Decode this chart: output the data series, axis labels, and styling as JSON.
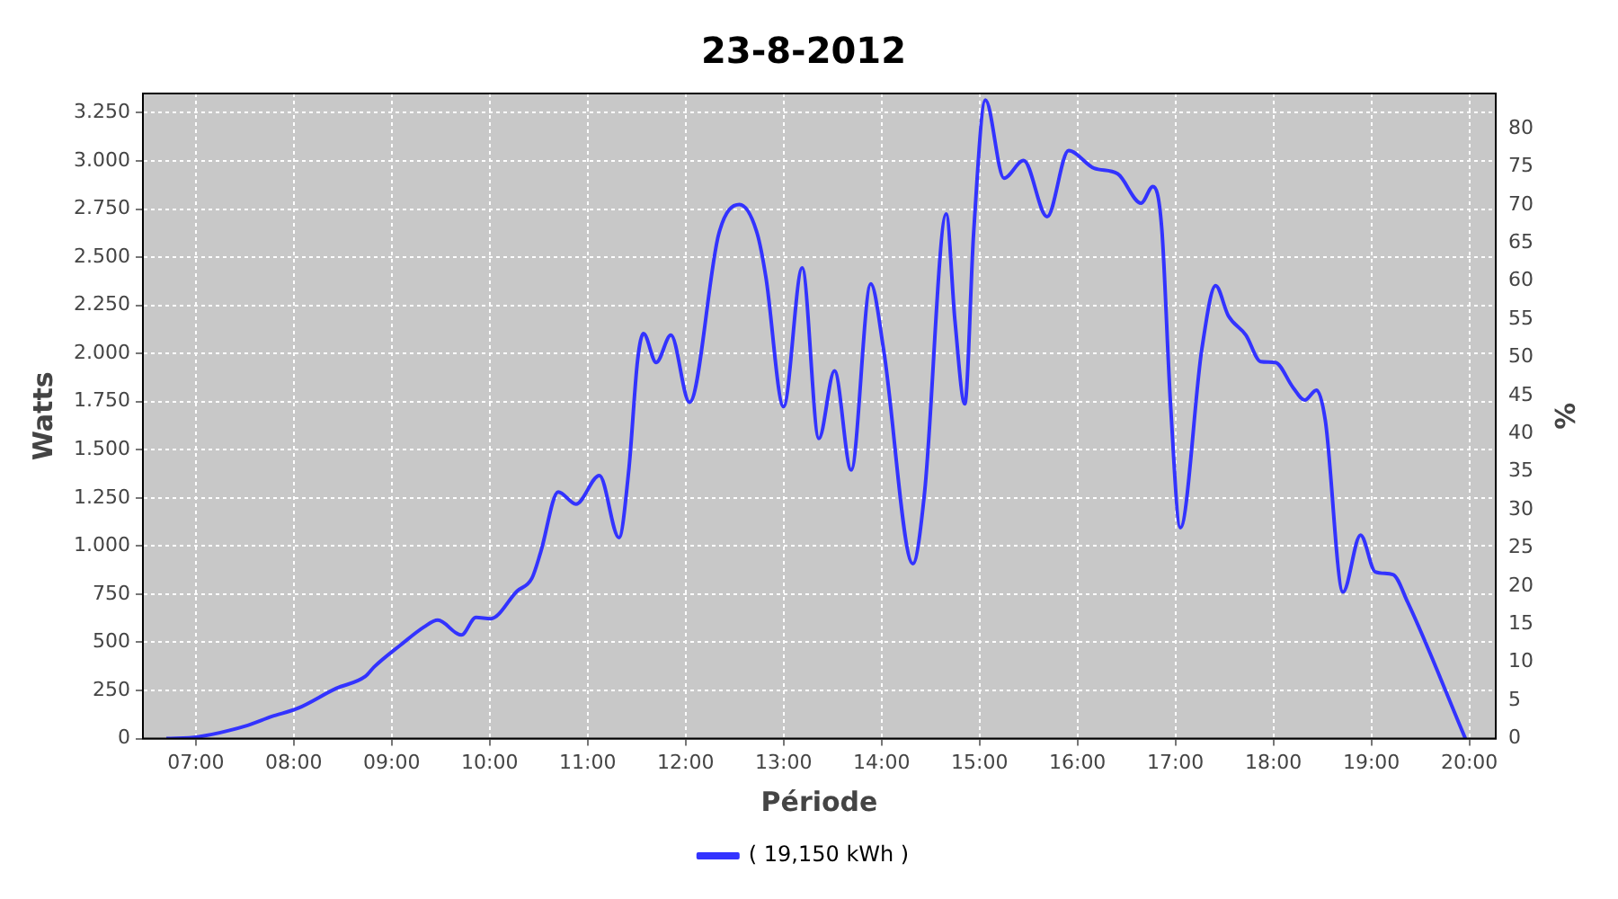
{
  "chart_data": {
    "type": "line",
    "title": "23-8-2012",
    "xlabel": "Période",
    "ylabel": "Watts",
    "y2label": "%",
    "x": [
      6.7,
      7.02,
      7.53,
      7.77,
      8.04,
      8.43,
      8.73,
      8.82,
      9.09,
      9.33,
      9.47,
      9.71,
      9.86,
      10.01,
      10.28,
      10.43,
      10.52,
      10.7,
      10.88,
      11.12,
      11.32,
      11.42,
      11.51,
      11.57,
      11.7,
      11.85,
      12.04,
      12.34,
      12.55,
      12.73,
      12.82,
      13.0,
      13.19,
      13.36,
      13.52,
      13.69,
      13.89,
      14.02,
      14.32,
      14.44,
      14.66,
      14.75,
      14.85,
      14.94,
      15.06,
      15.25,
      15.45,
      15.69,
      15.91,
      16.17,
      16.41,
      16.65,
      16.77,
      16.86,
      16.95,
      17.05,
      17.27,
      17.41,
      17.54,
      17.72,
      17.87,
      18.02,
      18.2,
      18.32,
      18.44,
      18.53,
      18.71,
      18.89,
      19.04,
      19.22,
      19.37,
      19.96
    ],
    "series": [
      {
        "name": "( 19,150 kWh )",
        "color": "#3333ff",
        "values": [
          0,
          9,
          69,
          114,
          157,
          260,
          323,
          372,
          486,
          580,
          615,
          538,
          629,
          623,
          766,
          832,
          967,
          1281,
          1218,
          1366,
          1044,
          1395,
          1966,
          2104,
          1953,
          2095,
          1747,
          2624,
          2773,
          2624,
          2395,
          1724,
          2444,
          1558,
          1910,
          1395,
          2361,
          2024,
          909,
          1281,
          2725,
          2167,
          1738,
          2624,
          3316,
          2910,
          3002,
          2710,
          3053,
          2962,
          2933,
          2781,
          2867,
          2653,
          1738,
          1095,
          2024,
          2352,
          2196,
          2095,
          1958,
          1953,
          1824,
          1758,
          1810,
          1653,
          761,
          1057,
          866,
          852,
          709,
          0
        ]
      }
    ],
    "xlim": [
      6.46,
      20.27
    ],
    "xticks": [
      {
        "value": 7,
        "label": "07:00"
      },
      {
        "value": 8,
        "label": "08:00"
      },
      {
        "value": 9,
        "label": "09:00"
      },
      {
        "value": 10,
        "label": "10:00"
      },
      {
        "value": 11,
        "label": "11:00"
      },
      {
        "value": 12,
        "label": "12:00"
      },
      {
        "value": 13,
        "label": "13:00"
      },
      {
        "value": 14,
        "label": "14:00"
      },
      {
        "value": 15,
        "label": "15:00"
      },
      {
        "value": 16,
        "label": "16:00"
      },
      {
        "value": 17,
        "label": "17:00"
      },
      {
        "value": 18,
        "label": "18:00"
      },
      {
        "value": 19,
        "label": "19:00"
      },
      {
        "value": 20,
        "label": "20:00"
      }
    ],
    "ylim": [
      0,
      3350
    ],
    "yticks": [
      0,
      250,
      500,
      750,
      {
        "value": 1000,
        "label": "1.000"
      },
      {
        "value": 1250,
        "label": "1.250"
      },
      {
        "value": 1500,
        "label": "1.500"
      },
      {
        "value": 1750,
        "label": "1.750"
      },
      {
        "value": 2000,
        "label": "2.000"
      },
      {
        "value": 2250,
        "label": "2.250"
      },
      {
        "value": 2500,
        "label": "2.500"
      },
      {
        "value": 2750,
        "label": "2.750"
      },
      {
        "value": 3000,
        "label": "3.000"
      },
      {
        "value": 3250,
        "label": "3.250"
      }
    ],
    "y2lim": [
      0,
      84.6
    ],
    "y2ticks": [
      0,
      5,
      10,
      15,
      20,
      25,
      30,
      35,
      40,
      45,
      50,
      55,
      60,
      65,
      70,
      75,
      80
    ],
    "grid": true,
    "legend": "bottom",
    "marker": "none",
    "line_style": "solid"
  }
}
